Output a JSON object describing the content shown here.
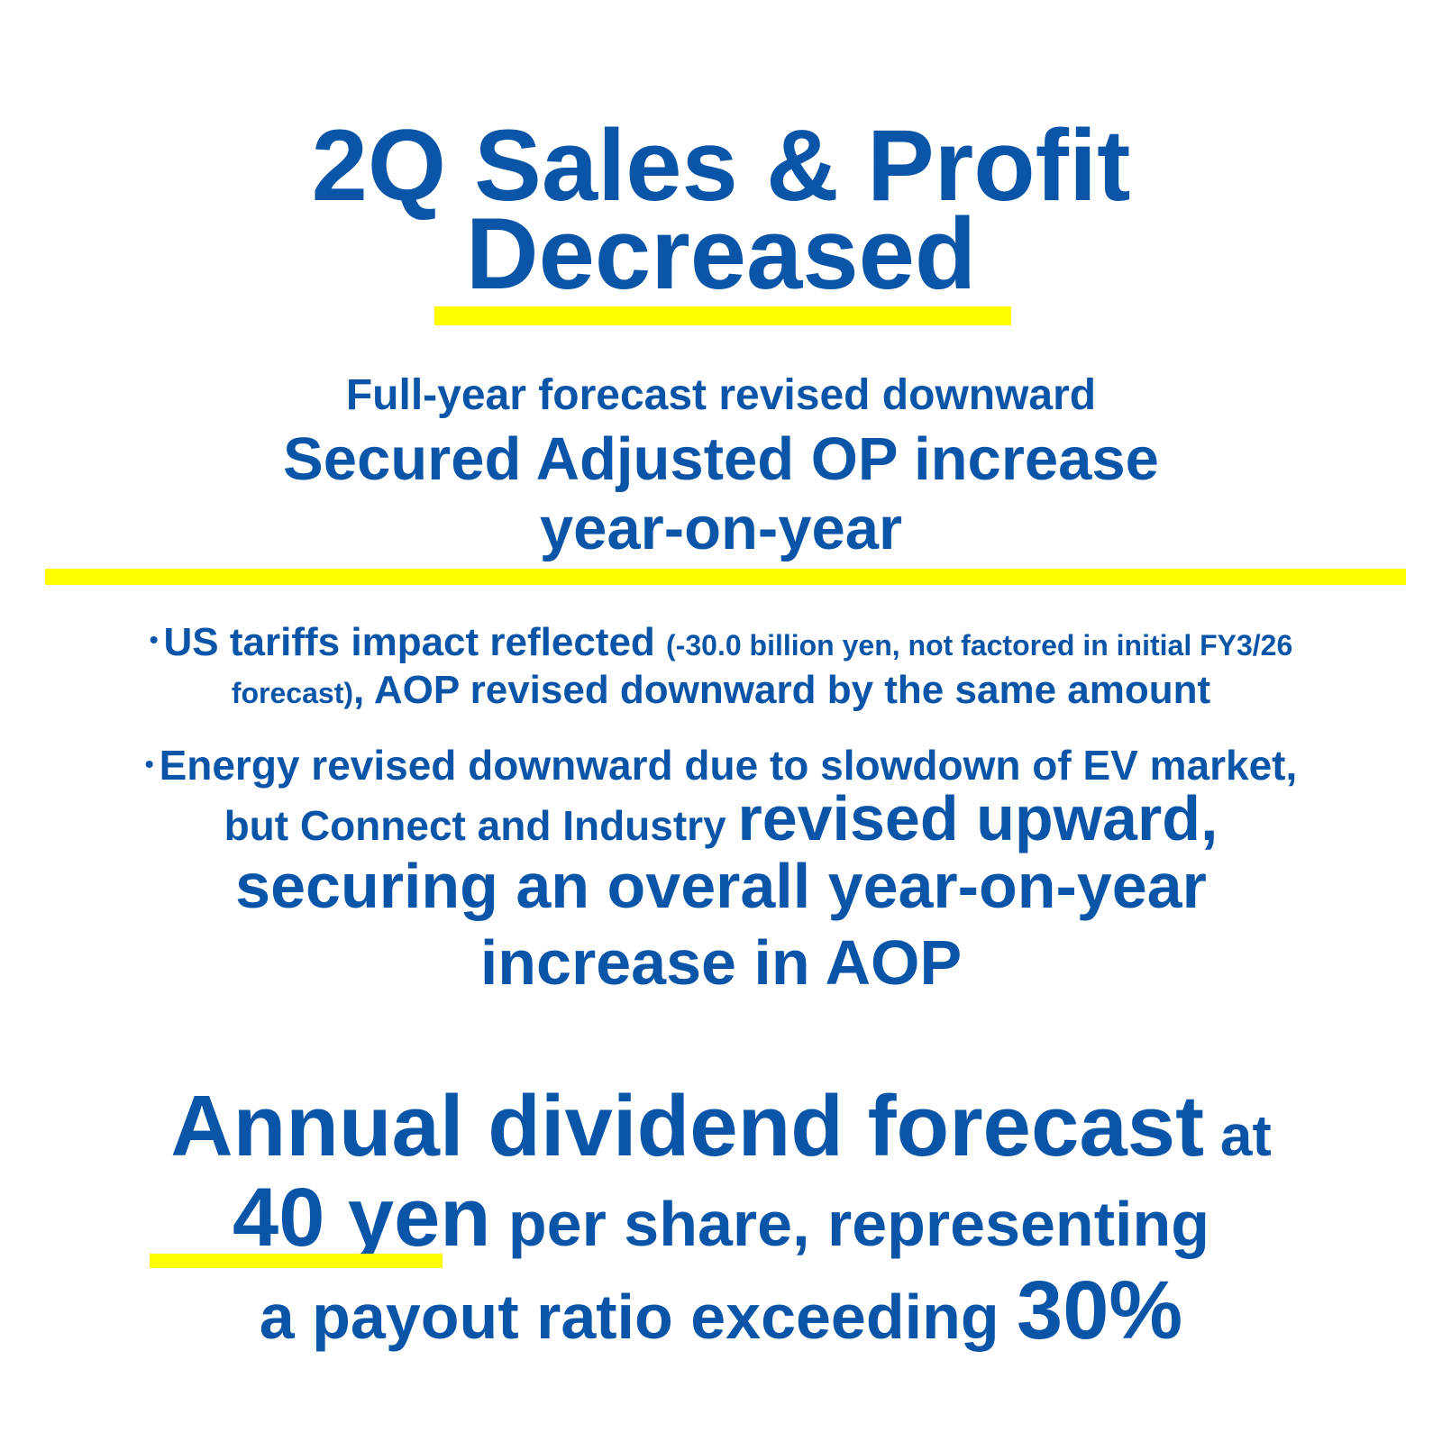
{
  "headline": {
    "line1": "2Q Sales & Profit",
    "line2": "Decreased"
  },
  "subheadline": {
    "line1": "Full-year forecast revised downward",
    "line2": "Secured Adjusted OP increase",
    "line3": "year-on-year"
  },
  "bullets": {
    "bullet_symbol": "•",
    "item1": {
      "lead": "US tariffs impact reflected ",
      "note_a": "(-30.0 billion yen, not factored in initial FY3/26",
      "note_b": "forecast)",
      "tail": ", AOP revised downward by the same amount"
    },
    "item2": {
      "line1": "Energy revised downward due to slowdown of EV market,",
      "line2_small": "but Connect and Industry ",
      "line2_big": "revised upward,",
      "line3": "securing an overall year-on-year",
      "line4": "increase in AOP"
    }
  },
  "dividend": {
    "line1_big": "Annual dividend forecast",
    "line1_small": " at",
    "line2_amount": "40 yen",
    "line2_rest": " per share, representing",
    "line3_text": "a payout ratio exceeding ",
    "line3_pct": "30%"
  },
  "colors": {
    "text": "#0a55a8",
    "highlight": "#ffff00",
    "background": "#ffffff"
  }
}
